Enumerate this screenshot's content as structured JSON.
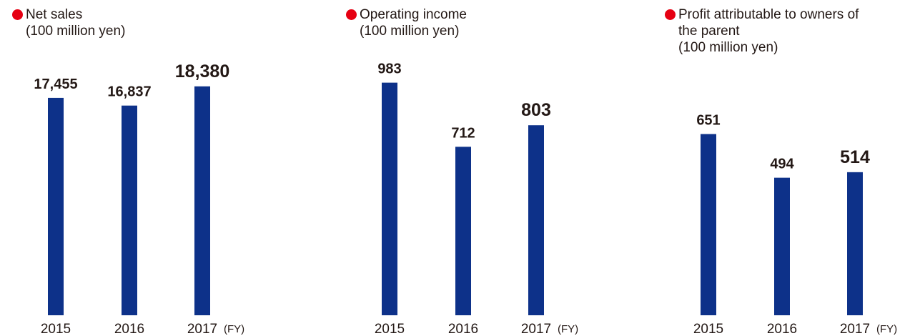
{
  "colors": {
    "bar": "#0d3189",
    "bullet": "#e60012",
    "text": "#231815"
  },
  "icons": {
    "bullet": "red-circle-bullet"
  },
  "chart_data": [
    {
      "type": "bar",
      "title_lines": [
        "Net sales",
        "(100 million yen)"
      ],
      "categories": [
        "2015",
        "2016",
        "2017"
      ],
      "x_unit": "(FY)",
      "values": [
        17455,
        16837,
        18380
      ],
      "value_labels": [
        "17,455",
        "16,837",
        "18,380"
      ],
      "emphasis": [
        false,
        false,
        true
      ],
      "ylim": [
        0,
        19000
      ],
      "grid": false
    },
    {
      "type": "bar",
      "title_lines": [
        "Operating income",
        "(100 million yen)"
      ],
      "categories": [
        "2015",
        "2016",
        "2017"
      ],
      "x_unit": "(FY)",
      "values": [
        983,
        712,
        803
      ],
      "value_labels": [
        "983",
        "712",
        "803"
      ],
      "emphasis": [
        false,
        false,
        true
      ],
      "ylim": [
        0,
        1000
      ],
      "grid": false
    },
    {
      "type": "bar",
      "title_lines": [
        "Profit attributable to owners of",
        "the parent",
        "(100 million yen)"
      ],
      "categories": [
        "2015",
        "2016",
        "2017"
      ],
      "x_unit": "(FY)",
      "values": [
        651,
        494,
        514
      ],
      "value_labels": [
        "651",
        "494",
        "514"
      ],
      "emphasis": [
        false,
        false,
        true
      ],
      "ylim": [
        0,
        850
      ],
      "grid": false
    }
  ]
}
